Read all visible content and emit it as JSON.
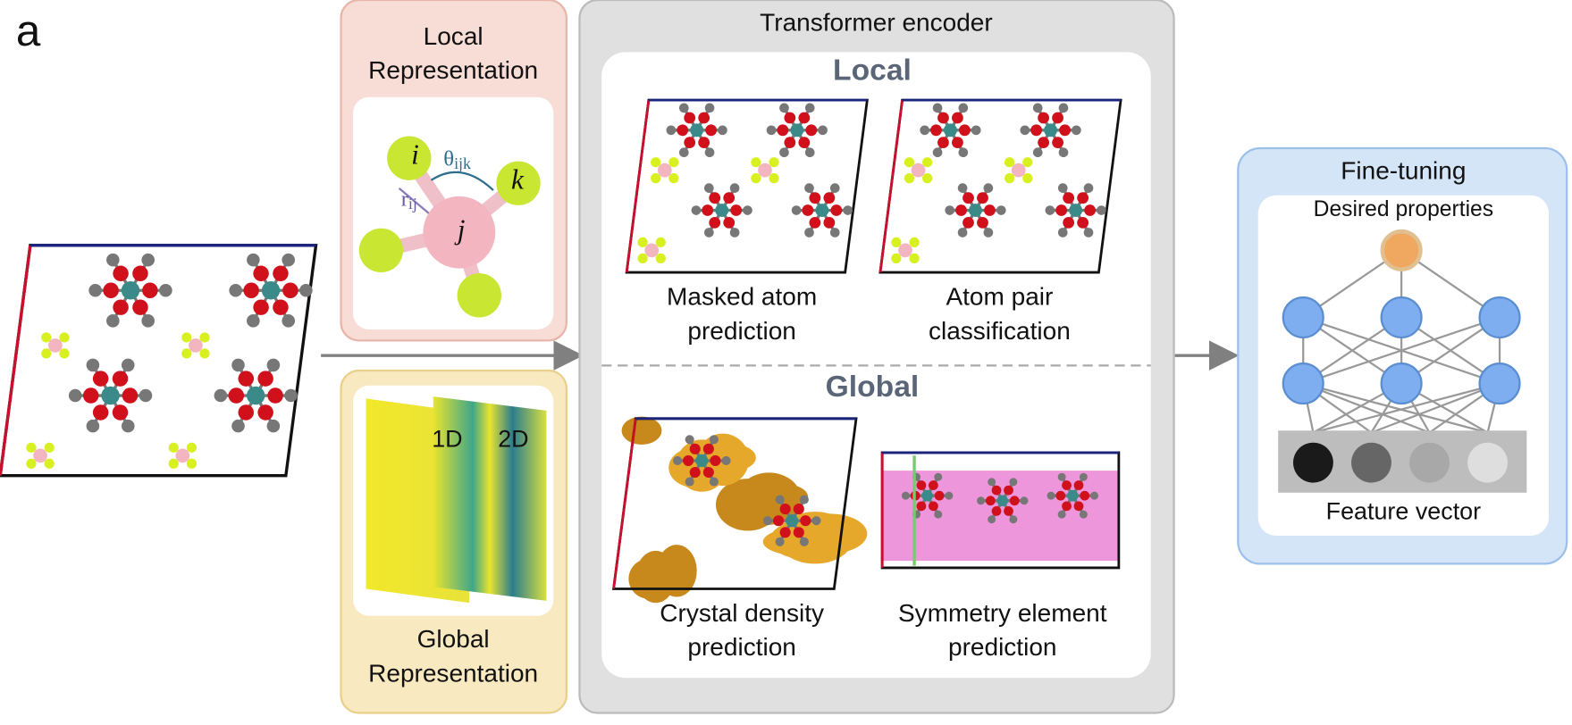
{
  "panel_label": "a",
  "local_representation": {
    "lines": [
      "Local",
      "Representation"
    ],
    "atoms": {
      "i": "i",
      "j": "j",
      "k": "k"
    },
    "angle": {
      "symbol": "θ",
      "sub": "ijk"
    },
    "distance": {
      "symbol": "r",
      "sub": "ij"
    }
  },
  "global_representation": {
    "lines": [
      "Global",
      "Representation"
    ],
    "maps": [
      "1D",
      "2D"
    ]
  },
  "transformer": {
    "title": "Transformer encoder",
    "local_heading": "Local",
    "global_heading": "Global",
    "tasks": [
      {
        "lines": [
          "Masked atom",
          "prediction"
        ]
      },
      {
        "lines": [
          "Atom pair",
          "classification"
        ]
      },
      {
        "lines": [
          "Crystal density",
          "prediction"
        ]
      },
      {
        "lines": [
          "Symmetry element",
          "prediction"
        ]
      }
    ]
  },
  "fine_tuning": {
    "title": "Fine-tuning",
    "output": "Desired properties",
    "input": "Feature vector"
  }
}
